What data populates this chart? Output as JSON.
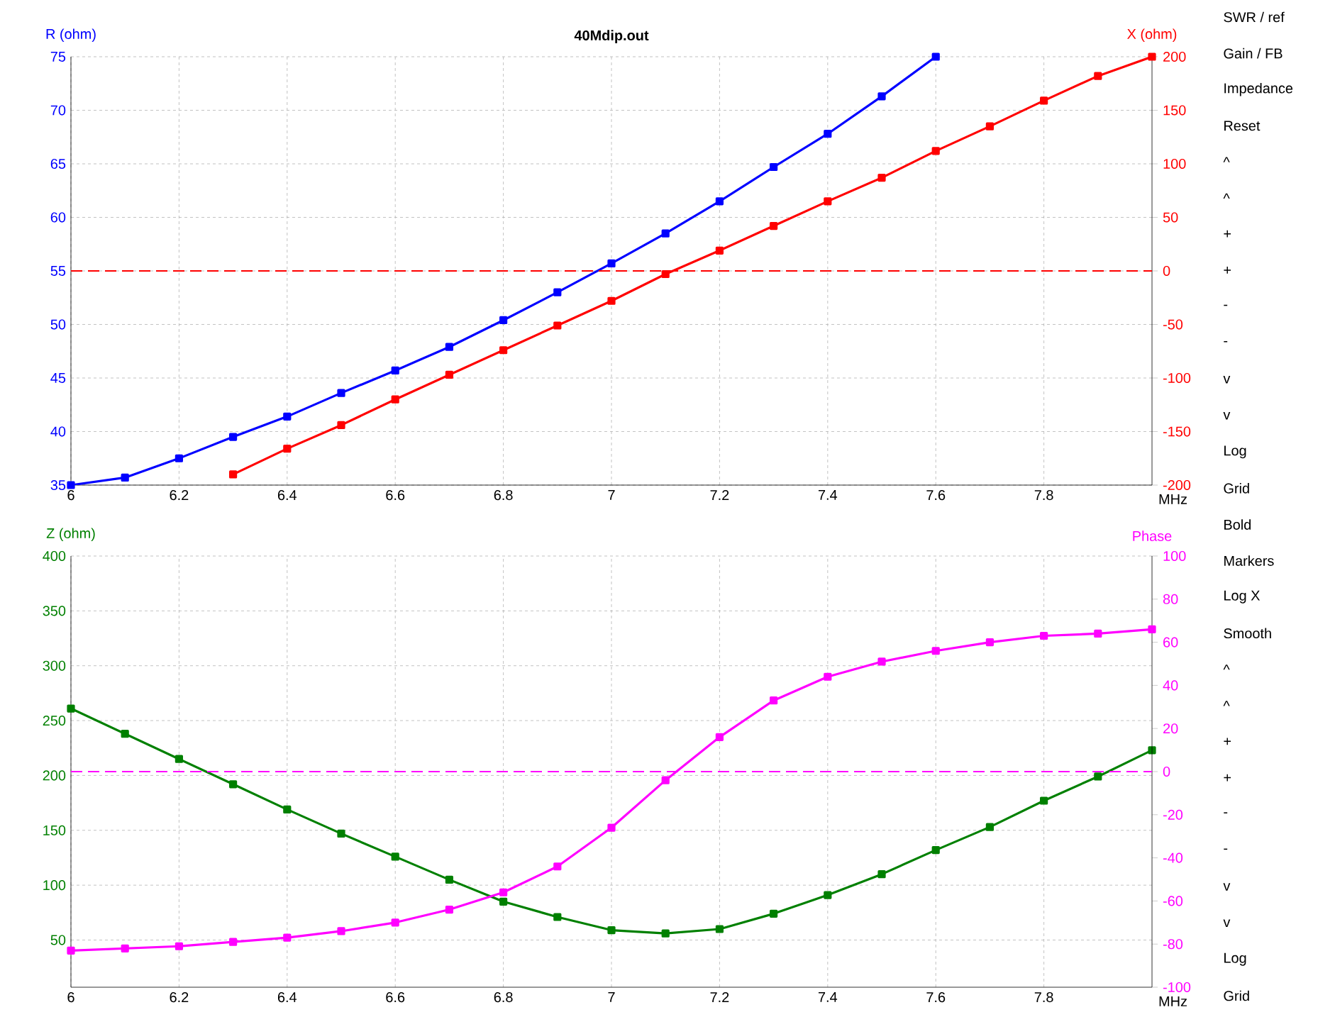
{
  "chart_data": [
    {
      "type": "line",
      "title": "40Mdip.out",
      "xlabel": "MHz",
      "ylabel": "R (ohm)",
      "y2label": "X (ohm)",
      "x": [
        6.0,
        6.1,
        6.2,
        6.3,
        6.4,
        6.5,
        6.6,
        6.7,
        6.8,
        6.9,
        7.0,
        7.1,
        7.2,
        7.3,
        7.4,
        7.5,
        7.6,
        7.7,
        7.8,
        7.9,
        8.0
      ],
      "xlim": [
        6,
        8
      ],
      "xticks": [
        6,
        6.2,
        6.4,
        6.6,
        6.8,
        7,
        7.2,
        7.4,
        7.6,
        7.8
      ],
      "ylim": [
        35,
        75
      ],
      "yticks": [
        35,
        40,
        45,
        50,
        55,
        60,
        65,
        70,
        75
      ],
      "y2lim": [
        -200,
        200
      ],
      "y2ticks": [
        -200,
        -150,
        -100,
        -50,
        0,
        50,
        100,
        150,
        200
      ],
      "grid": true,
      "marker": "square",
      "ref_lines": [
        {
          "axis": "y2",
          "value": 0,
          "color": "#ff0000",
          "line_style": "dashed"
        }
      ],
      "series": [
        {
          "color": "#0000ff",
          "values": [
            35.0,
            35.7,
            37.5,
            39.5,
            41.4,
            43.6,
            45.7,
            47.9,
            50.4,
            53.0,
            55.7,
            58.5,
            61.5,
            64.7,
            67.8,
            71.3,
            75.0,
            null,
            null,
            null,
            null
          ]
        },
        {
          "color": "#ff0000",
          "axis": "y2",
          "values": [
            null,
            null,
            null,
            -190,
            -166,
            -144,
            -120,
            -97,
            -74,
            -51,
            -28,
            -3,
            19,
            42,
            65,
            87,
            112,
            135,
            159,
            182,
            200
          ]
        }
      ]
    },
    {
      "type": "line",
      "xlabel": "MHz",
      "ylabel": "Z (ohm)",
      "y2label": "Phase",
      "x": [
        6.0,
        6.1,
        6.2,
        6.3,
        6.4,
        6.5,
        6.6,
        6.7,
        6.8,
        6.9,
        7.0,
        7.1,
        7.2,
        7.3,
        7.4,
        7.5,
        7.6,
        7.7,
        7.8,
        7.9,
        8.0
      ],
      "xlim": [
        6,
        8
      ],
      "xticks": [
        6,
        6.2,
        6.4,
        6.6,
        6.8,
        7,
        7.2,
        7.4,
        7.6,
        7.8
      ],
      "ylim": [
        7,
        400
      ],
      "yticks": [
        50,
        100,
        150,
        200,
        250,
        300,
        350,
        400
      ],
      "y2lim": [
        -100,
        100
      ],
      "y2ticks": [
        -100,
        -80,
        -60,
        -40,
        -20,
        0,
        20,
        40,
        60,
        80,
        100
      ],
      "grid": true,
      "marker": "square",
      "ref_lines": [
        {
          "axis": "y2",
          "value": 0,
          "color": "#ff00ff",
          "line_style": "dashed"
        }
      ],
      "series": [
        {
          "color": "#008000",
          "values": [
            261,
            238,
            215,
            192,
            169,
            147,
            126,
            105,
            85,
            71,
            59,
            56,
            60,
            74,
            91,
            110,
            132,
            153,
            177,
            199,
            223
          ]
        },
        {
          "color": "#ff00ff",
          "axis": "y2",
          "values": [
            -83,
            -82,
            -81,
            -79,
            -77,
            -74,
            -70,
            -64,
            -56,
            -44,
            -26,
            -4,
            16,
            33,
            44,
            51,
            56,
            60,
            63,
            64,
            66
          ]
        }
      ]
    },
    {
      "type": "other",
      "annotations": [
        "SWR / ref",
        "Gain / FB",
        "Impedance",
        "Reset",
        "^",
        "^",
        "+",
        "+",
        "-",
        "-",
        "v",
        "v",
        "Log",
        "Grid",
        "Bold",
        "Markers",
        "Log X",
        "Smooth",
        "^",
        "^",
        "+",
        "+",
        "-",
        "-",
        "v",
        "v",
        "Log",
        "Grid"
      ]
    }
  ]
}
